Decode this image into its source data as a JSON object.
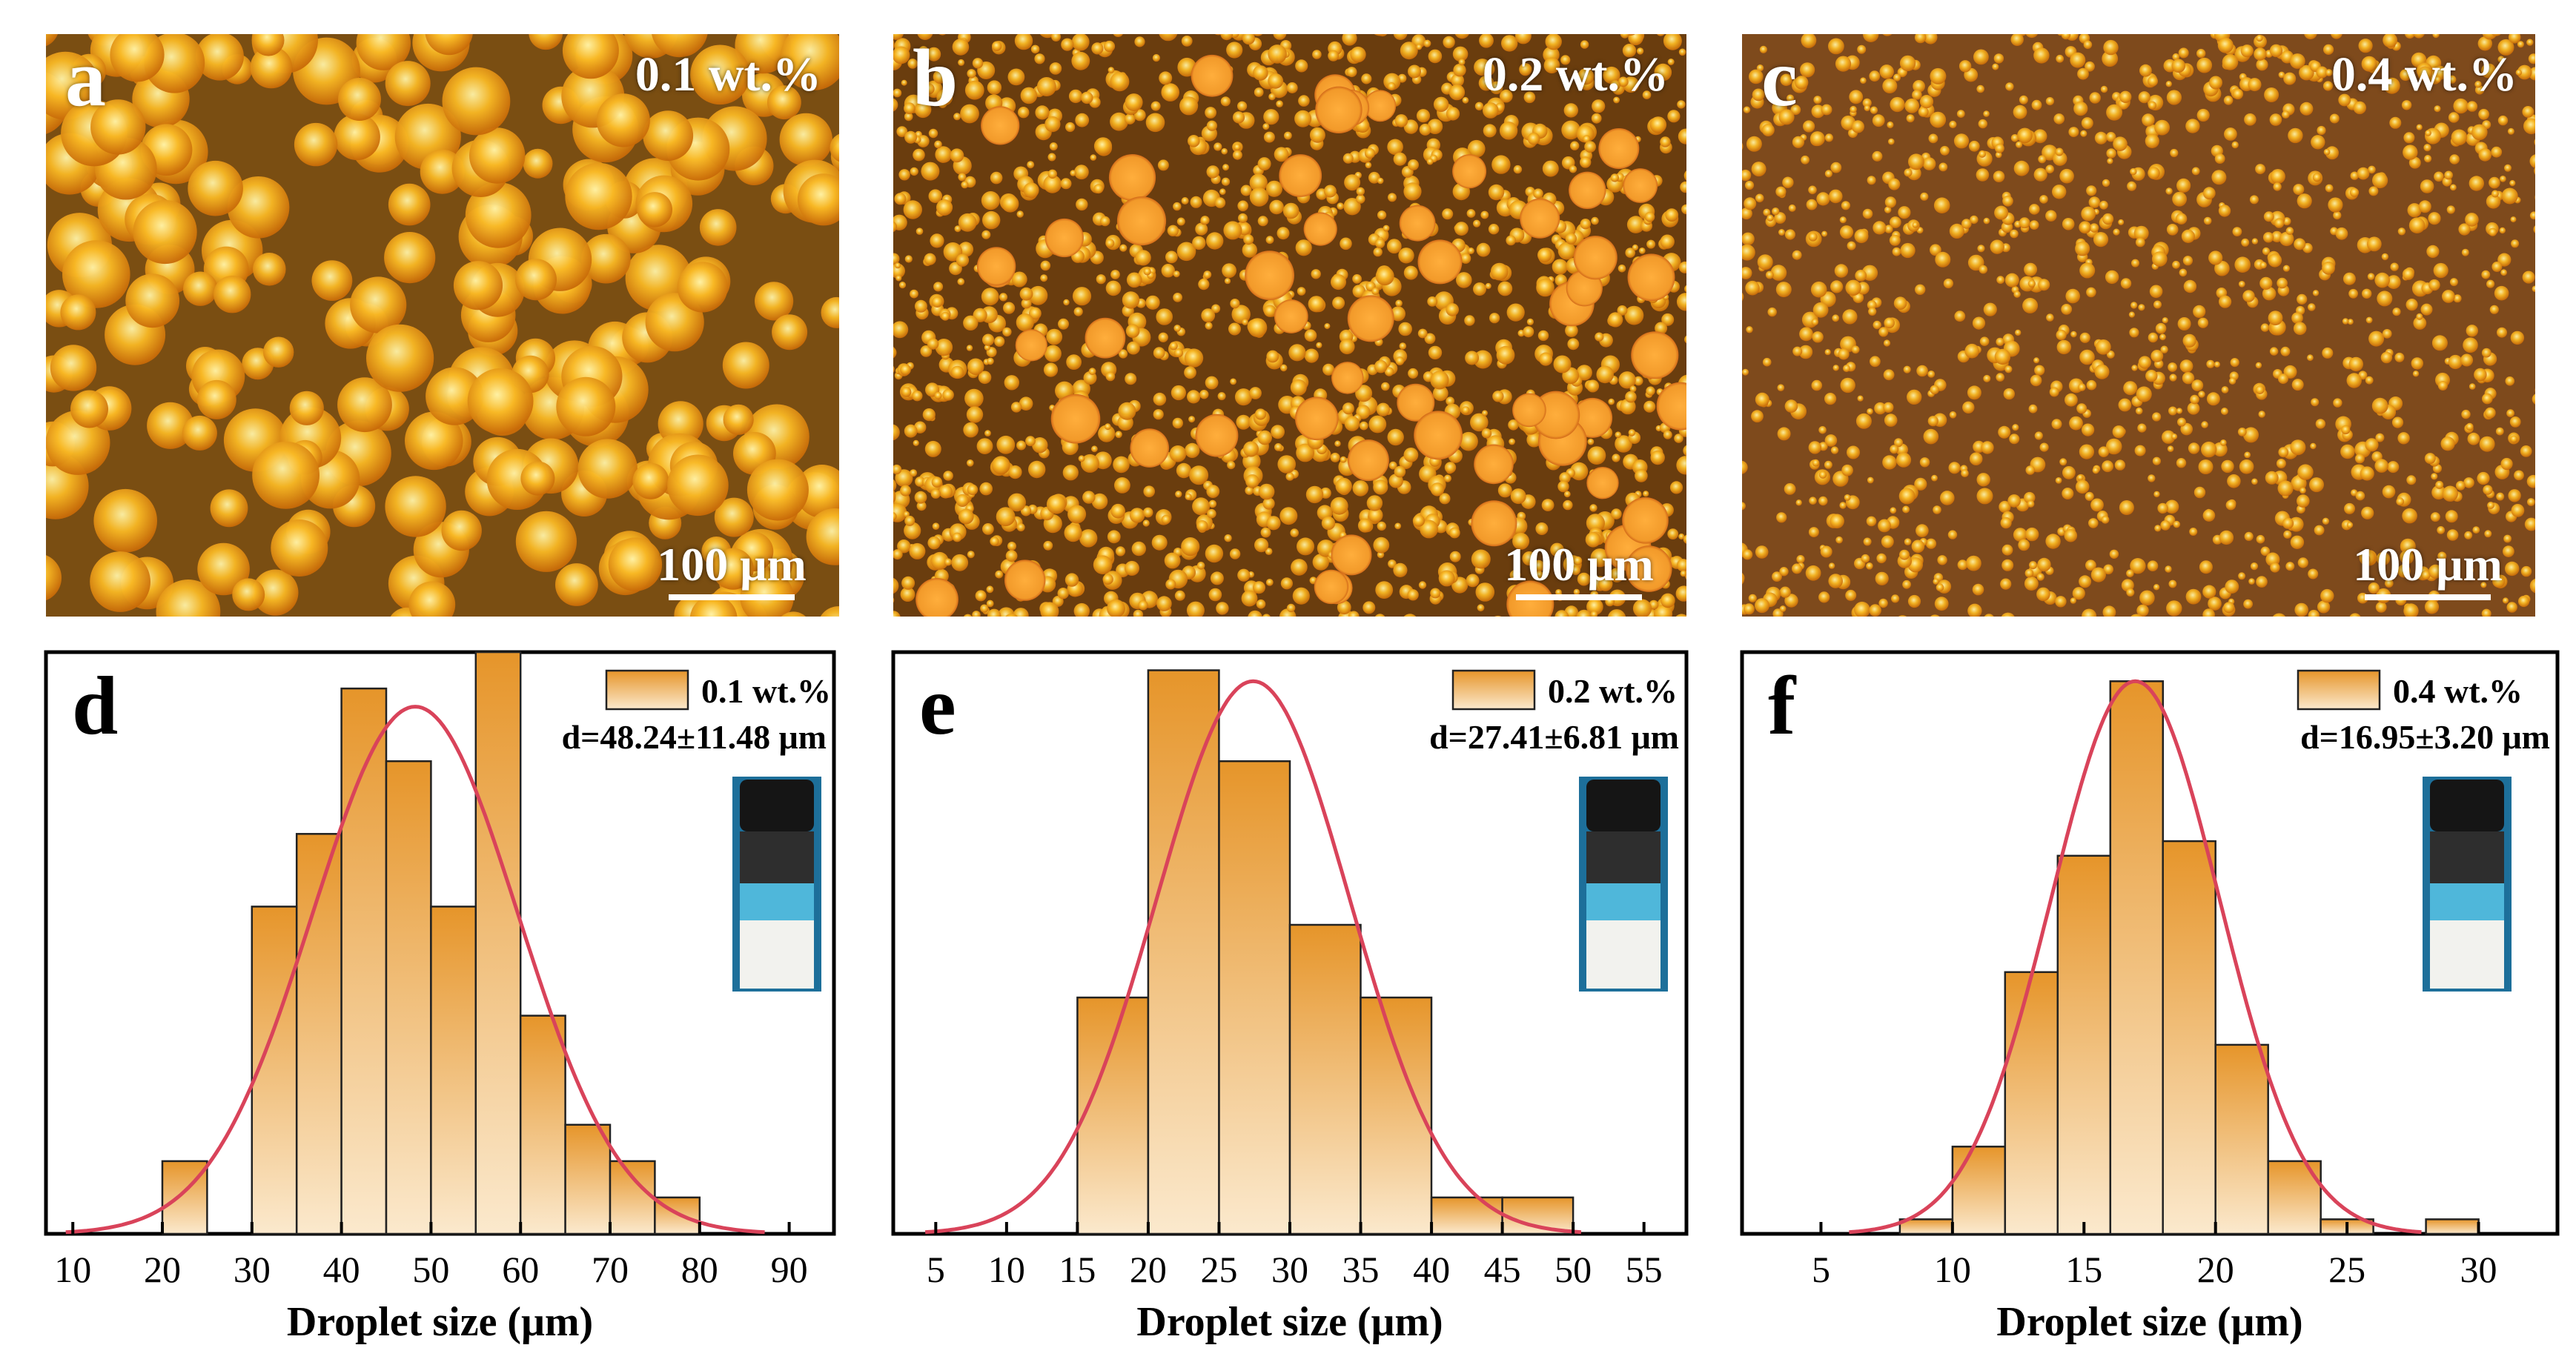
{
  "figure": {
    "micrographs": [
      {
        "label": "a",
        "concentration": "0.1 wt.%",
        "scale_bar": "100 μm"
      },
      {
        "label": "b",
        "concentration": "0.2 wt.%",
        "scale_bar": "100 μm"
      },
      {
        "label": "c",
        "concentration": "0.4 wt.%",
        "scale_bar": "100 μm"
      }
    ]
  },
  "colors": {
    "bar_top": "#e6952a",
    "bar_bottom": "#fbe9cd",
    "fit_curve": "#d9435a",
    "micro_bg_a": "#7a4e12",
    "micro_bg_b": "#6a3d0e",
    "micro_bg_c": "#7e4a1c"
  },
  "chart_data": [
    {
      "type": "bar",
      "panel_label": "d",
      "legend_label": "0.1 wt.%",
      "annotation": "d=48.24±11.48 μm",
      "xlabel": "Droplet size (μm)",
      "ylabel": "",
      "xlim": [
        7,
        95
      ],
      "ylim": [
        0,
        16
      ],
      "xticks": [
        10,
        20,
        30,
        40,
        50,
        60,
        70,
        80,
        90
      ],
      "bins": [
        [
          20,
          25
        ],
        [
          30,
          35
        ],
        [
          35,
          40
        ],
        [
          40,
          45
        ],
        [
          45,
          50
        ],
        [
          50,
          55
        ],
        [
          55,
          60
        ],
        [
          60,
          65
        ],
        [
          65,
          70
        ],
        [
          70,
          75
        ],
        [
          75,
          80
        ]
      ],
      "values": [
        2,
        9,
        11,
        15,
        13,
        9,
        16,
        6,
        3,
        2,
        1
      ],
      "fit": {
        "type": "gaussian",
        "mean": 48.24,
        "sigma": 11.48,
        "peak": 14.5
      }
    },
    {
      "type": "bar",
      "panel_label": "e",
      "legend_label": "0.2 wt.%",
      "annotation": "d=27.41±6.81 μm",
      "xlabel": "Droplet size (μm)",
      "ylabel": "",
      "xlim": [
        2,
        58
      ],
      "ylim": [
        0,
        16
      ],
      "xticks": [
        5,
        10,
        15,
        20,
        25,
        30,
        35,
        40,
        45,
        50,
        55
      ],
      "bins": [
        [
          15,
          20
        ],
        [
          20,
          25
        ],
        [
          25,
          30
        ],
        [
          30,
          35
        ],
        [
          35,
          40
        ],
        [
          40,
          45
        ],
        [
          45,
          50
        ]
      ],
      "values": [
        6.5,
        15.5,
        13,
        8.5,
        6.5,
        1,
        1
      ],
      "fit": {
        "type": "gaussian",
        "mean": 27.41,
        "sigma": 6.81,
        "peak": 15.2
      }
    },
    {
      "type": "bar",
      "panel_label": "f",
      "legend_label": "0.4 wt.%",
      "annotation": "d=16.95±3.20 μm",
      "xlabel": "Droplet size (μm)",
      "ylabel": "",
      "xlim": [
        2,
        33
      ],
      "ylim": [
        0,
        20
      ],
      "xticks": [
        5,
        10,
        15,
        20,
        25,
        30
      ],
      "bins": [
        [
          8,
          10
        ],
        [
          10,
          12
        ],
        [
          12,
          14
        ],
        [
          14,
          16
        ],
        [
          16,
          18
        ],
        [
          18,
          20
        ],
        [
          20,
          22
        ],
        [
          22,
          24
        ],
        [
          24,
          26
        ],
        [
          28,
          30
        ]
      ],
      "values": [
        0.5,
        3,
        9,
        13,
        19,
        13.5,
        6.5,
        2.5,
        0.5,
        0.5
      ],
      "fit": {
        "type": "gaussian",
        "mean": 16.95,
        "sigma": 3.2,
        "peak": 19
      }
    }
  ]
}
